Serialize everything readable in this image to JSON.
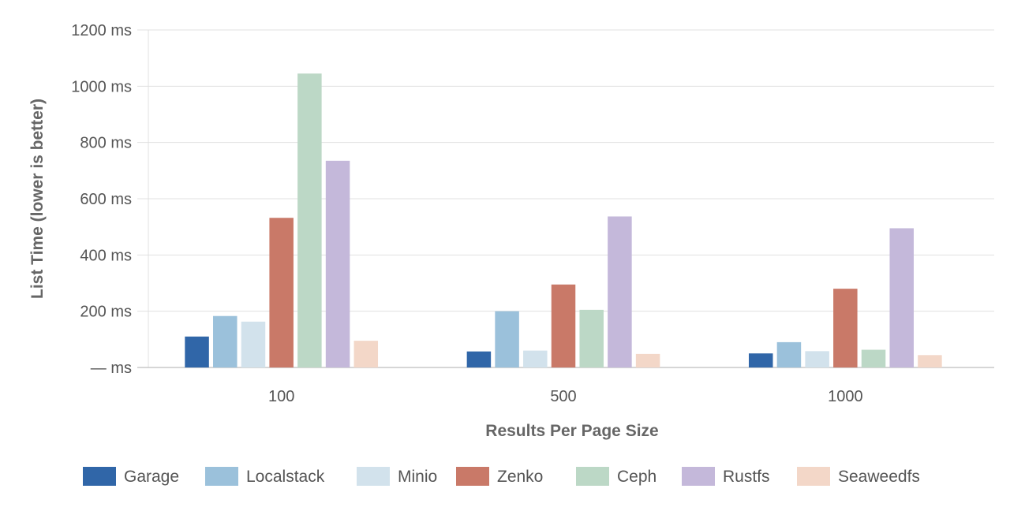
{
  "chart_data": {
    "type": "bar",
    "xlabel": "Results Per Page Size",
    "ylabel": "List Time (lower is better)",
    "categories": [
      "100",
      "500",
      "1000"
    ],
    "ylim": [
      0,
      1200
    ],
    "yticks": [
      0,
      200,
      400,
      600,
      800,
      1000,
      1200
    ],
    "ytick_labels": [
      "— ms",
      "200 ms",
      "400 ms",
      "600 ms",
      "800 ms",
      "1000 ms",
      "1200 ms"
    ],
    "grid": true,
    "legend_position": "bottom",
    "series": [
      {
        "name": "Garage",
        "color": "#3066a8",
        "values": [
          110,
          57,
          50
        ]
      },
      {
        "name": "Localstack",
        "color": "#9bc1db",
        "values": [
          183,
          200,
          90
        ]
      },
      {
        "name": "Minio",
        "color": "#d2e2ec",
        "values": [
          163,
          60,
          58
        ]
      },
      {
        "name": "Zenko",
        "color": "#c97968",
        "values": [
          532,
          295,
          280
        ]
      },
      {
        "name": "Ceph",
        "color": "#bcd8c6",
        "values": [
          1045,
          205,
          63
        ]
      },
      {
        "name": "Rustfs",
        "color": "#c4b8da",
        "values": [
          735,
          537,
          495
        ]
      },
      {
        "name": "Seaweedfs",
        "color": "#f3d7c8",
        "values": [
          95,
          48,
          44
        ]
      }
    ]
  }
}
